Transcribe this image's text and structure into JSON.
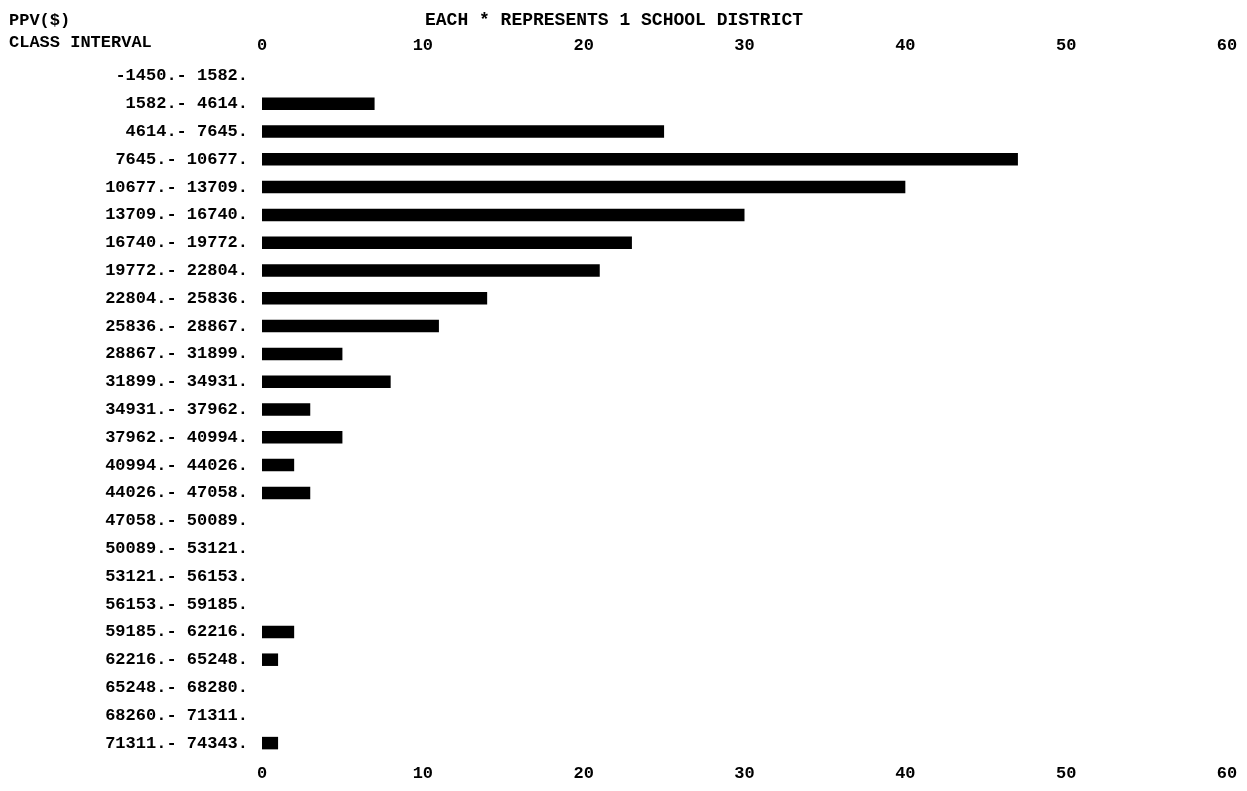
{
  "chart_data": {
    "type": "bar",
    "orientation": "horizontal",
    "title": "EACH * REPRESENTS 1 SCHOOL DISTRICT",
    "ylabel": "PPV($)\nCLASS INTERVAL",
    "categories": [
      "-1450.- 1582.",
      "1582.- 4614.",
      "4614.- 7645.",
      "7645.- 10677.",
      "10677.- 13709.",
      "13709.- 16740.",
      "16740.- 19772.",
      "19772.- 22804.",
      "22804.- 25836.",
      "25836.- 28867.",
      "28867.- 31899.",
      "31899.- 34931.",
      "34931.- 37962.",
      "37962.- 40994.",
      "40994.- 44026.",
      "44026.- 47058.",
      "47058.- 50089.",
      "50089.- 53121.",
      "53121.- 56153.",
      "56153.- 59185.",
      "59185.- 62216.",
      "62216.- 65248.",
      "65248.- 68280.",
      "68260.- 71311.",
      "71311.- 74343."
    ],
    "values": [
      0,
      7,
      25,
      47,
      40,
      30,
      23,
      21,
      14,
      11,
      5,
      8,
      3,
      5,
      2,
      3,
      0,
      0,
      0,
      0,
      2,
      1,
      0,
      0,
      1
    ],
    "color": "#000000",
    "xlim": [
      0,
      60
    ],
    "xticks": [
      0,
      10,
      20,
      30,
      40,
      50,
      60
    ],
    "x2lim": [
      0,
      60
    ],
    "x2ticks": [
      0,
      10,
      20,
      30,
      40,
      50,
      60
    ],
    "grid": false
  }
}
